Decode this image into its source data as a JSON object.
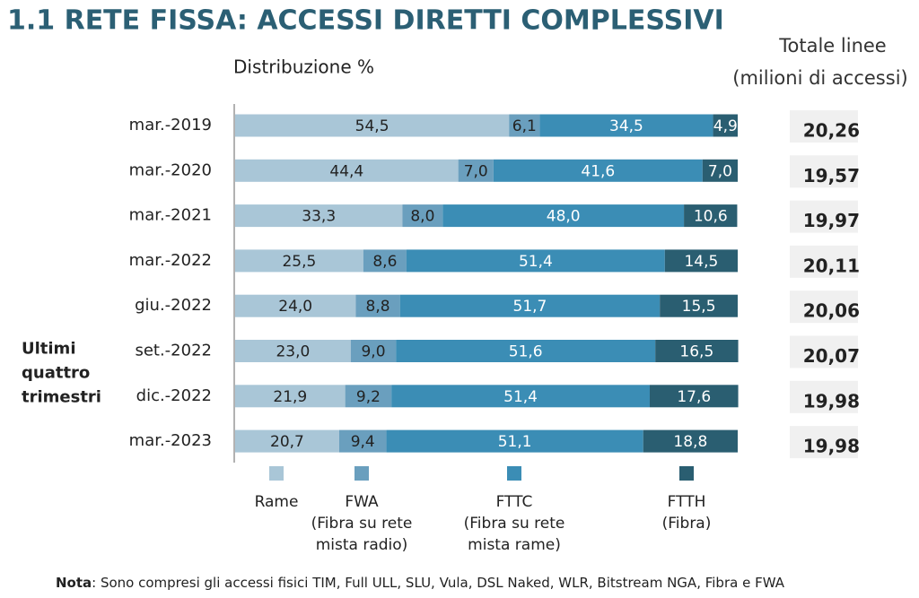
{
  "chart_data": {
    "type": "stacked_bar_horizontal",
    "title": "1.1 RETE FISSA: ACCESSI DIRETTI COMPLESSIVI",
    "subtitle": "Distribuzione %",
    "categories": [
      "mar.-2019",
      "mar.-2020",
      "mar.-2021",
      "mar.-2022",
      "giu.-2022",
      "set.-2022",
      "dic.-2022",
      "mar.-2023"
    ],
    "xlim": [
      0,
      100
    ],
    "series": [
      {
        "name": "Rame",
        "description": [],
        "color": "#a9c6d7",
        "label_color": "#222",
        "values": [
          54.5,
          44.4,
          33.3,
          25.5,
          24.0,
          23.0,
          21.9,
          20.7
        ],
        "value_labels": [
          "54,5",
          "44,4",
          "33,3",
          "25,5",
          "24,0",
          "23,0",
          "21,9",
          "20,7"
        ]
      },
      {
        "name": "FWA",
        "description": [
          "(Fibra su rete",
          "mista radio)"
        ],
        "color": "#6a9fbe",
        "label_color": "#222",
        "values": [
          6.1,
          7.0,
          8.0,
          8.6,
          8.8,
          9.0,
          9.2,
          9.4
        ],
        "value_labels": [
          "6,1",
          "7,0",
          "8,0",
          "8,6",
          "8,8",
          "9,0",
          "9,2",
          "9,4"
        ]
      },
      {
        "name": "FTTC",
        "description": [
          "(Fibra su rete",
          "mista rame)"
        ],
        "color": "#3b8db5",
        "label_color": "#fff",
        "values": [
          34.5,
          41.6,
          48.0,
          51.4,
          51.7,
          51.6,
          51.4,
          51.1
        ],
        "value_labels": [
          "34,5",
          "41,6",
          "48,0",
          "51,4",
          "51,7",
          "51,6",
          "51,4",
          "51,1"
        ]
      },
      {
        "name": "FTTH",
        "description": [
          "(Fibra)"
        ],
        "color": "#2a5e71",
        "label_color": "#fff",
        "values": [
          4.9,
          7.0,
          10.6,
          14.5,
          15.5,
          16.5,
          17.6,
          18.8
        ],
        "value_labels": [
          "4,9",
          "7,0",
          "10,6",
          "14,5",
          "15,5",
          "16,5",
          "17,6",
          "18,8"
        ]
      }
    ],
    "totals": {
      "title": [
        "Totale linee",
        "(milioni di accessi)"
      ],
      "values": [
        20.26,
        19.57,
        19.97,
        20.11,
        20.06,
        20.07,
        19.98,
        19.98
      ],
      "value_labels": [
        "20,26",
        "19,57",
        "19,97",
        "20,11",
        "20,06",
        "20,07",
        "19,98",
        "19,98"
      ]
    },
    "group_label": {
      "lines": [
        "Ultimi",
        "quattro",
        "trimestri"
      ],
      "first_category": 4,
      "last_category": 7
    },
    "note_label": "Nota",
    "note_text": ": Sono compresi gli accessi fisici TIM, Full ULL, SLU, Vula, DSL Naked, WLR, Bitstream NGA, Fibra e FWA"
  }
}
